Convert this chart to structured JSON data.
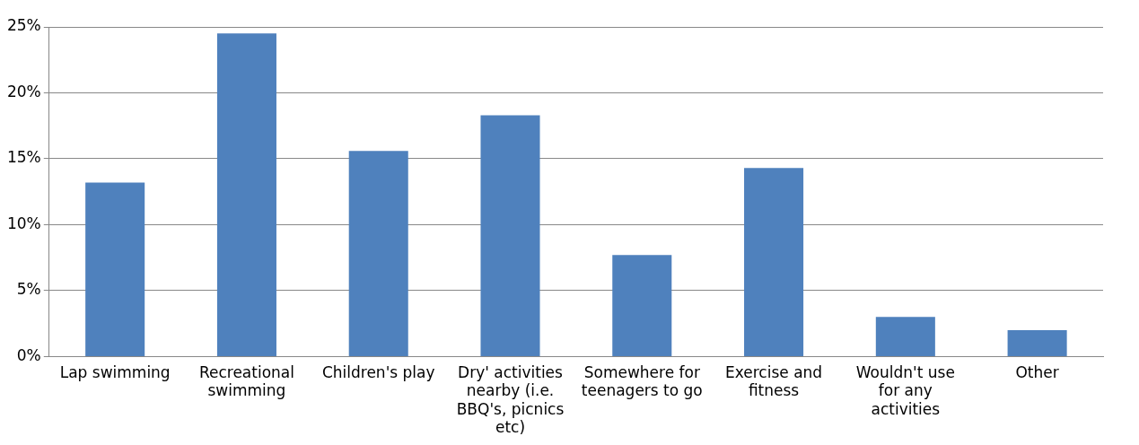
{
  "chart_data": {
    "type": "bar",
    "categories": [
      "Lap swimming",
      "Recreational swimming",
      "Children's play",
      "Dry' activities nearby (i.e. BBQ's, picnics etc)",
      "Somewhere for teenagers to go",
      "Exercise and fitness",
      "Wouldn't use for any activities",
      "Other"
    ],
    "values": [
      13.2,
      24.5,
      15.6,
      18.3,
      7.7,
      14.3,
      3.0,
      2.0
    ],
    "color": "#4f81bd",
    "ylim": [
      0,
      25
    ],
    "yticks": [
      {
        "value": 0,
        "label": "0%"
      },
      {
        "value": 5,
        "label": "5%"
      },
      {
        "value": 10,
        "label": "10%"
      },
      {
        "value": 15,
        "label": "15%"
      },
      {
        "value": 20,
        "label": "20%"
      },
      {
        "value": 25,
        "label": "25%"
      }
    ],
    "grid": "y",
    "legend": false
  }
}
